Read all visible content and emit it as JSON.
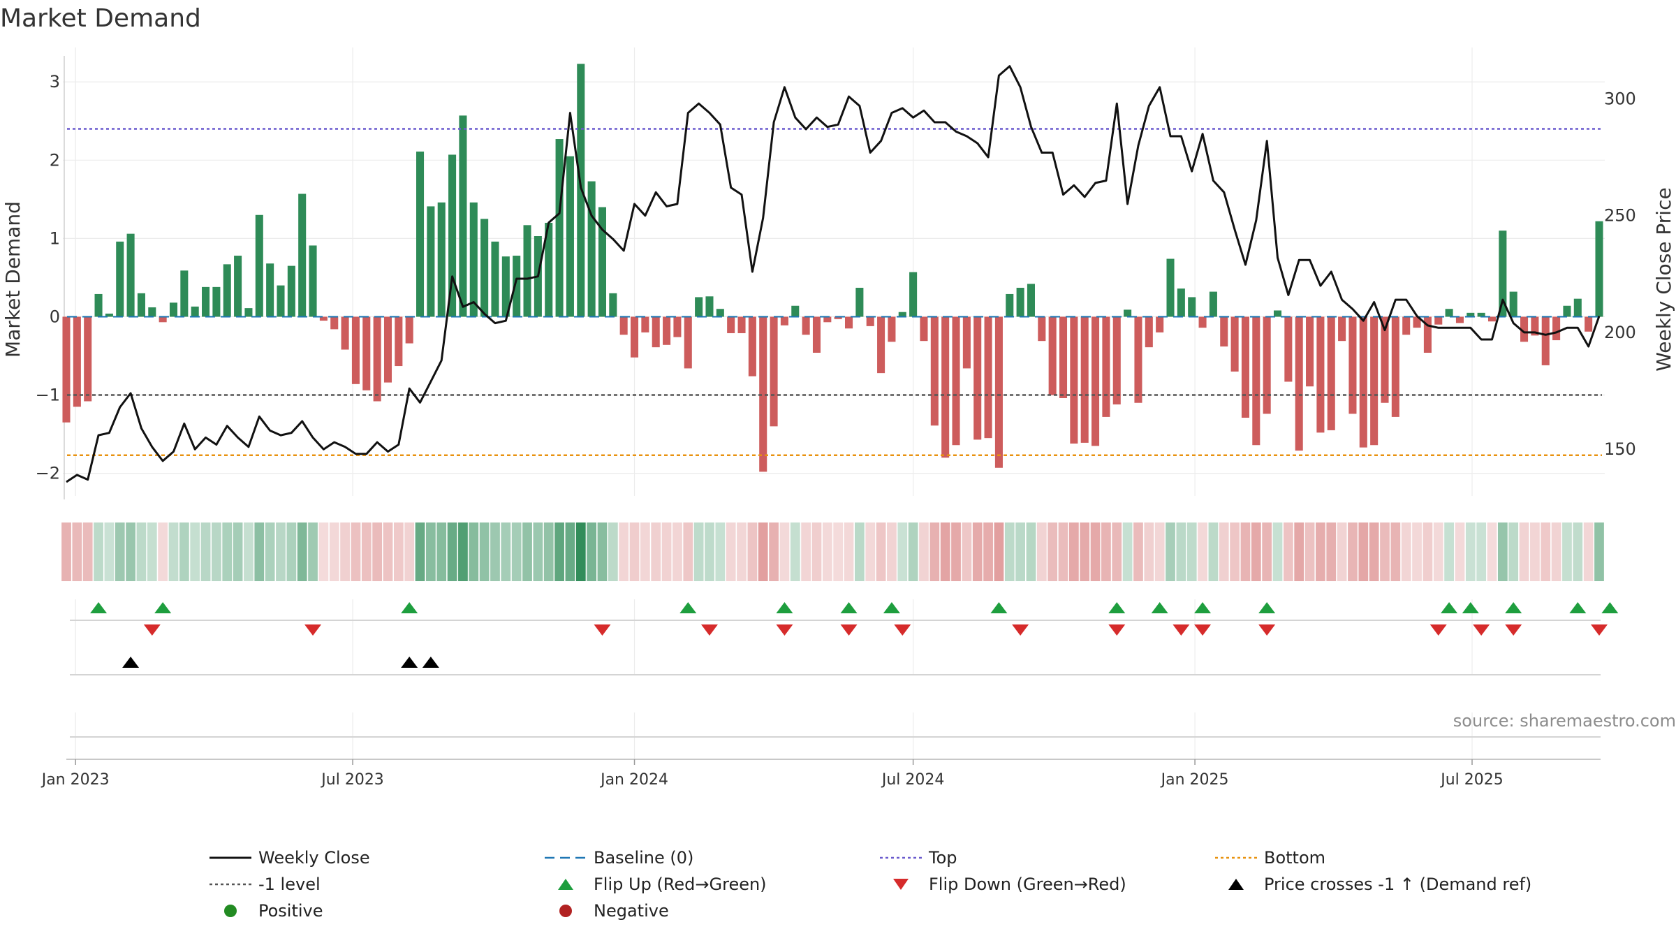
{
  "title": "Market Demand",
  "source": "source: sharemaestro.com",
  "colors": {
    "positive": "#2e8b57",
    "negative": "#cd5c5c",
    "flip_up": "#1e9e3e",
    "flip_down": "#d62b2b",
    "price": "#111111",
    "top": "#6a5acd",
    "bottom": "#e8920f",
    "baseline": "#1f77b4",
    "minus1": "#555555"
  },
  "legend": [
    {
      "key": "weekly_close",
      "label": "Weekly Close",
      "type": "line-solid",
      "color": "#111111"
    },
    {
      "key": "baseline",
      "label": "Baseline (0)",
      "type": "line-dashed",
      "color": "#1f77b4"
    },
    {
      "key": "top",
      "label": "Top",
      "type": "line-dotted",
      "color": "#6a5acd"
    },
    {
      "key": "bottom",
      "label": "Bottom",
      "type": "line-dotted",
      "color": "#e8920f"
    },
    {
      "key": "minus1",
      "label": "-1 level",
      "type": "line-dotted",
      "color": "#555555"
    },
    {
      "key": "flip_up",
      "label": "Flip Up (Red→Green)",
      "type": "tri-up",
      "color": "#1e9e3e"
    },
    {
      "key": "flip_down",
      "label": "Flip Down (Green→Red)",
      "type": "tri-down",
      "color": "#d62b2b"
    },
    {
      "key": "price_cross",
      "label": "Price crosses -1 ↑ (Demand ref)",
      "type": "tri-up",
      "color": "#000000"
    },
    {
      "key": "positive",
      "label": "Positive",
      "type": "dot",
      "color": "#228b22"
    },
    {
      "key": "negative",
      "label": "Negative",
      "type": "dot",
      "color": "#b22222"
    }
  ],
  "chart_data": {
    "type": "bar",
    "title": "Market Demand",
    "ylabel": "Market Demand",
    "y2label": "Weekly Close Price",
    "ylim": [
      -2.2,
      3.35
    ],
    "y2lim": [
      133,
      319
    ],
    "yticks": [
      -2,
      -1,
      0,
      1,
      2,
      3
    ],
    "y2ticks": [
      150,
      200,
      250,
      300
    ],
    "date_range": [
      "2022-12-26",
      "2025-09-22"
    ],
    "xticks": [
      {
        "label": "Jan 2023",
        "date": "2023-01-01"
      },
      {
        "label": "Jul 2023",
        "date": "2023-07-01"
      },
      {
        "label": "Jan 2024",
        "date": "2024-01-01"
      },
      {
        "label": "Jul 2024",
        "date": "2024-07-01"
      },
      {
        "label": "Jan 2025",
        "date": "2025-01-01"
      },
      {
        "label": "Jul 2025",
        "date": "2025-07-01"
      }
    ],
    "reference_lines": {
      "top": 2.4,
      "bottom": -1.77,
      "minus1": -1,
      "baseline": 0
    },
    "series": [
      {
        "name": "Market Demand",
        "values": [
          -1.35,
          -1.15,
          -1.08,
          0.29,
          0.04,
          0.96,
          1.06,
          0.3,
          0.12,
          -0.07,
          0.18,
          0.59,
          0.13,
          0.38,
          0.38,
          0.67,
          0.78,
          0.11,
          1.3,
          0.68,
          0.4,
          0.65,
          1.57,
          0.91,
          -0.05,
          -0.16,
          -0.42,
          -0.86,
          -0.94,
          -1.08,
          -0.84,
          -0.63,
          -0.34,
          2.11,
          1.41,
          1.46,
          2.07,
          2.57,
          1.46,
          1.25,
          0.96,
          0.77,
          0.78,
          1.17,
          1.03,
          1.2,
          2.27,
          2.05,
          3.23,
          1.73,
          1.4,
          0.3,
          -0.23,
          -0.52,
          -0.2,
          -0.39,
          -0.36,
          -0.26,
          -0.66,
          0.25,
          0.26,
          0.1,
          -0.21,
          -0.21,
          -0.76,
          -1.98,
          -1.4,
          -0.11,
          0.14,
          -0.23,
          -0.46,
          -0.07,
          -0.03,
          -0.15,
          0.37,
          -0.12,
          -0.72,
          -0.32,
          0.06,
          0.57,
          -0.31,
          -1.39,
          -1.8,
          -1.64,
          -0.66,
          -1.57,
          -1.55,
          -1.93,
          0.29,
          0.37,
          0.42,
          -0.31,
          -1.0,
          -1.04,
          -1.62,
          -1.61,
          -1.65,
          -1.28,
          -1.12,
          0.09,
          -1.1,
          -0.39,
          -0.2,
          0.74,
          0.36,
          0.25,
          -0.14,
          0.32,
          -0.38,
          -0.7,
          -1.29,
          -1.64,
          -1.24,
          0.08,
          -0.83,
          -1.71,
          -0.89,
          -1.48,
          -1.45,
          -0.31,
          -1.24,
          -1.67,
          -1.64,
          -1.1,
          -1.28,
          -0.23,
          -0.14,
          -0.46,
          -0.1,
          0.1,
          -0.08,
          0.05,
          0.05,
          -0.06,
          1.1,
          0.32,
          -0.32,
          -0.24,
          -0.62,
          -0.3,
          0.14,
          0.23,
          -0.19,
          1.22
        ]
      },
      {
        "name": "Weekly Close",
        "axis": "y2",
        "values": [
          136,
          139,
          137,
          156,
          157,
          168,
          174,
          159,
          151,
          145,
          149,
          161,
          150,
          155,
          152,
          160,
          155,
          151,
          164,
          158,
          156,
          157,
          162,
          155,
          150,
          153,
          151,
          148,
          148,
          153,
          149,
          152,
          176,
          170,
          179,
          188,
          224,
          211,
          213,
          208,
          204,
          205,
          223,
          223,
          224,
          247,
          251,
          294,
          262,
          250,
          244,
          240,
          235,
          255,
          250,
          260,
          254,
          255,
          294,
          298,
          294,
          289,
          262,
          259,
          226,
          249,
          290,
          305,
          292,
          287,
          292,
          288,
          289,
          301,
          297,
          277,
          282,
          294,
          296,
          292,
          295,
          290,
          290,
          286,
          284,
          281,
          275,
          310,
          314,
          305,
          288,
          277,
          277,
          259,
          263,
          258,
          264,
          265,
          298,
          255,
          280,
          297,
          305,
          284,
          284,
          269,
          285,
          265,
          260,
          244,
          229,
          248,
          282,
          232,
          216,
          231,
          231,
          220,
          226,
          214,
          210,
          205,
          213,
          201,
          214,
          214,
          207,
          203,
          202,
          202,
          202,
          202,
          197,
          197,
          214,
          204,
          200,
          200,
          199,
          200,
          202,
          202,
          194,
          207
        ]
      }
    ],
    "flip_up_weeks": [
      3,
      9,
      32,
      58,
      67,
      73,
      77,
      87,
      98,
      102,
      106,
      112,
      129,
      131,
      135,
      141,
      144
    ],
    "flip_down_weeks": [
      8,
      23,
      50,
      60,
      67,
      73,
      78,
      89,
      98,
      104,
      106,
      112,
      128,
      132,
      135,
      143
    ],
    "price_cross_weeks": [
      6,
      32,
      34
    ]
  }
}
